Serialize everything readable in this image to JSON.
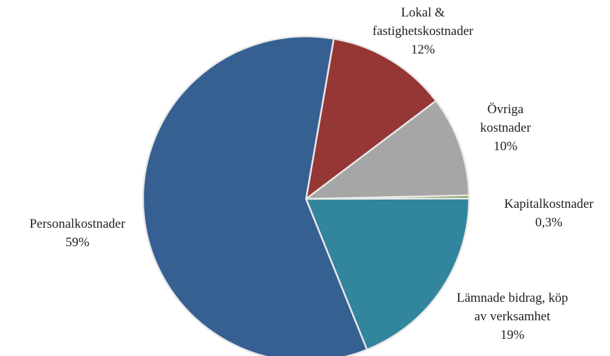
{
  "chart_data": {
    "type": "pie",
    "categories": [
      "Lokal & fastighetskostnader",
      "Övriga kostnader",
      "Kapitalkostnader",
      "Lämnade bidrag, köp av verksamhet",
      "Personalkostnader"
    ],
    "values": [
      12,
      10,
      0.3,
      19,
      59
    ],
    "value_labels": [
      "12%",
      "10%",
      "0,3%",
      "19%",
      "59%"
    ],
    "colors": [
      "#953735",
      "#a6a6a6",
      "#77933c",
      "#31859c",
      "#376092"
    ]
  }
}
